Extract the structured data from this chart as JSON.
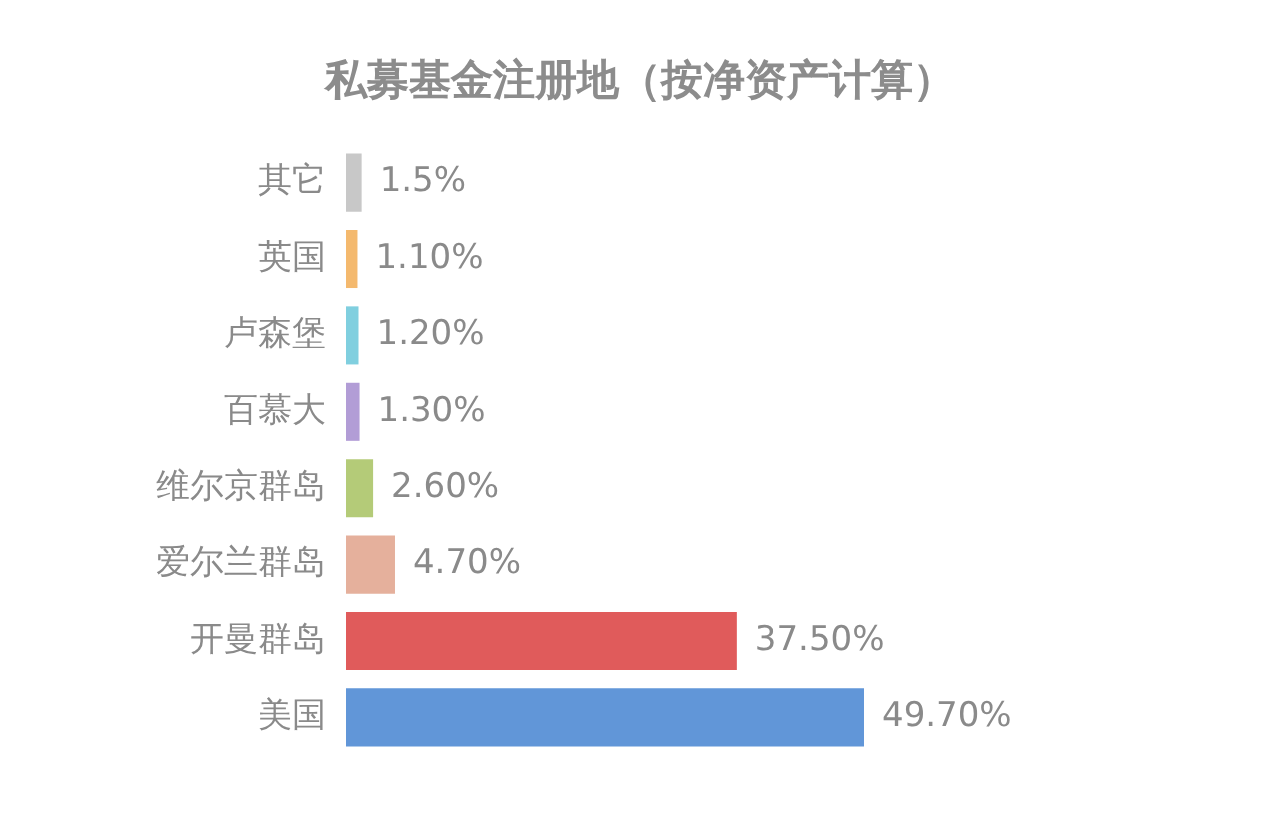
{
  "chart_data": {
    "type": "bar",
    "orientation": "horizontal",
    "title": "私募基金注册地（按净资产计算）",
    "categories": [
      "其它",
      "英国",
      "卢森堡",
      "百慕大",
      "维尔京群岛",
      "爱尔兰群岛",
      "开曼群岛",
      "美国"
    ],
    "values": [
      1.5,
      1.1,
      1.2,
      1.3,
      2.6,
      4.7,
      37.5,
      49.7
    ],
    "colors": [
      "#c8c8c8",
      "#f4b96e",
      "#80cfdf",
      "#b29dd6",
      "#b4cb78",
      "#e5b09c",
      "#e05b5b",
      "#6196d8"
    ],
    "value_labels": [
      "1.5%",
      "1.10%",
      "1.20%",
      "1.30%",
      "2.60%",
      "4.70%",
      "37.50%",
      "49.70%"
    ],
    "tick_labels": "y",
    "grid": false,
    "legend": false
  }
}
